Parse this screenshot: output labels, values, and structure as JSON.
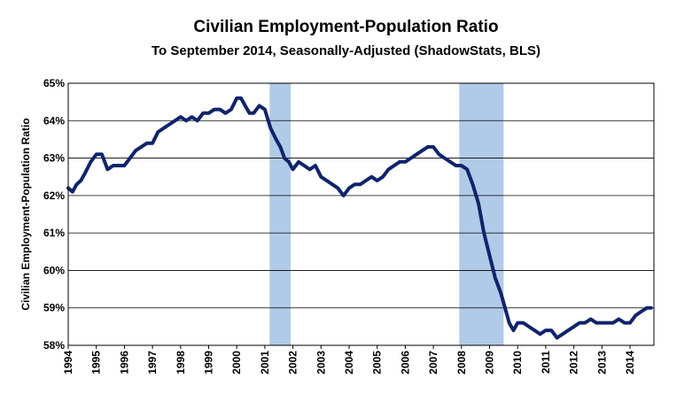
{
  "chart_data": {
    "type": "line",
    "title": "Civilian Employment-Population  Ratio",
    "subtitle": "To September 2014, Seasonally-Adjusted (ShadowStats, BLS)",
    "xlabel": "",
    "ylabel": "Civilian Employment-Population  Ratio",
    "ylim": [
      58,
      65
    ],
    "xlim": [
      1994.0,
      2014.75
    ],
    "grid": true,
    "y_ticks": [
      "58%",
      "59%",
      "60%",
      "61%",
      "62%",
      "63%",
      "64%",
      "65%"
    ],
    "x_ticks": [
      "1994",
      "1995",
      "1996",
      "1997",
      "1998",
      "1999",
      "2000",
      "2001",
      "2002",
      "2003",
      "2004",
      "2005",
      "2006",
      "2007",
      "2008",
      "2009",
      "2010",
      "2011",
      "2012",
      "2013",
      "2014"
    ],
    "recessions": [
      [
        2001.17,
        2001.92
      ],
      [
        2007.92,
        2009.5
      ]
    ],
    "line_color": "#10246B",
    "recession_color": "#A9C4E6",
    "series": [
      {
        "x": [
          1994.0,
          1994.15,
          1994.3,
          1994.45,
          1994.6,
          1994.8,
          1995.0,
          1995.2,
          1995.4,
          1995.6,
          1995.8,
          1996.0,
          1996.2,
          1996.4,
          1996.6,
          1996.8,
          1997.0,
          1997.2,
          1997.4,
          1997.6,
          1997.8,
          1998.0,
          1998.2,
          1998.4,
          1998.6,
          1998.8,
          1999.0,
          1999.2,
          1999.4,
          1999.6,
          1999.8,
          2000.0,
          2000.15,
          2000.3,
          2000.45,
          2000.6,
          2000.8,
          2001.0,
          2001.2,
          2001.4,
          2001.55,
          2001.7,
          2001.85,
          2002.0,
          2002.2,
          2002.4,
          2002.6,
          2002.8,
          2003.0,
          2003.2,
          2003.4,
          2003.6,
          2003.8,
          2004.0,
          2004.2,
          2004.4,
          2004.6,
          2004.8,
          2005.0,
          2005.2,
          2005.4,
          2005.6,
          2005.8,
          2006.0,
          2006.2,
          2006.4,
          2006.6,
          2006.8,
          2007.0,
          2007.2,
          2007.4,
          2007.6,
          2007.8,
          2008.0,
          2008.2,
          2008.4,
          2008.6,
          2008.8,
          2009.0,
          2009.2,
          2009.4,
          2009.55,
          2009.7,
          2009.85,
          2010.0,
          2010.2,
          2010.4,
          2010.6,
          2010.8,
          2011.0,
          2011.2,
          2011.4,
          2011.6,
          2011.8,
          2012.0,
          2012.2,
          2012.4,
          2012.6,
          2012.8,
          2013.0,
          2013.2,
          2013.4,
          2013.6,
          2013.8,
          2014.0,
          2014.2,
          2014.4,
          2014.6,
          2014.75
        ],
        "y": [
          62.2,
          62.1,
          62.3,
          62.4,
          62.6,
          62.9,
          63.1,
          63.1,
          62.7,
          62.8,
          62.8,
          62.8,
          63.0,
          63.2,
          63.3,
          63.4,
          63.4,
          63.7,
          63.8,
          63.9,
          64.0,
          64.1,
          64.0,
          64.1,
          64.0,
          64.2,
          64.2,
          64.3,
          64.3,
          64.2,
          64.3,
          64.6,
          64.6,
          64.4,
          64.2,
          64.2,
          64.4,
          64.3,
          63.8,
          63.5,
          63.3,
          63.0,
          62.9,
          62.7,
          62.9,
          62.8,
          62.7,
          62.8,
          62.5,
          62.4,
          62.3,
          62.2,
          62.0,
          62.2,
          62.3,
          62.3,
          62.4,
          62.5,
          62.4,
          62.5,
          62.7,
          62.8,
          62.9,
          62.9,
          63.0,
          63.1,
          63.2,
          63.3,
          63.3,
          63.1,
          63.0,
          62.9,
          62.8,
          62.8,
          62.7,
          62.3,
          61.8,
          61.0,
          60.4,
          59.8,
          59.4,
          59.0,
          58.6,
          58.4,
          58.6,
          58.6,
          58.5,
          58.4,
          58.3,
          58.4,
          58.4,
          58.2,
          58.3,
          58.4,
          58.5,
          58.6,
          58.6,
          58.7,
          58.6,
          58.6,
          58.6,
          58.6,
          58.7,
          58.6,
          58.6,
          58.8,
          58.9,
          59.0,
          59.0
        ]
      }
    ]
  }
}
